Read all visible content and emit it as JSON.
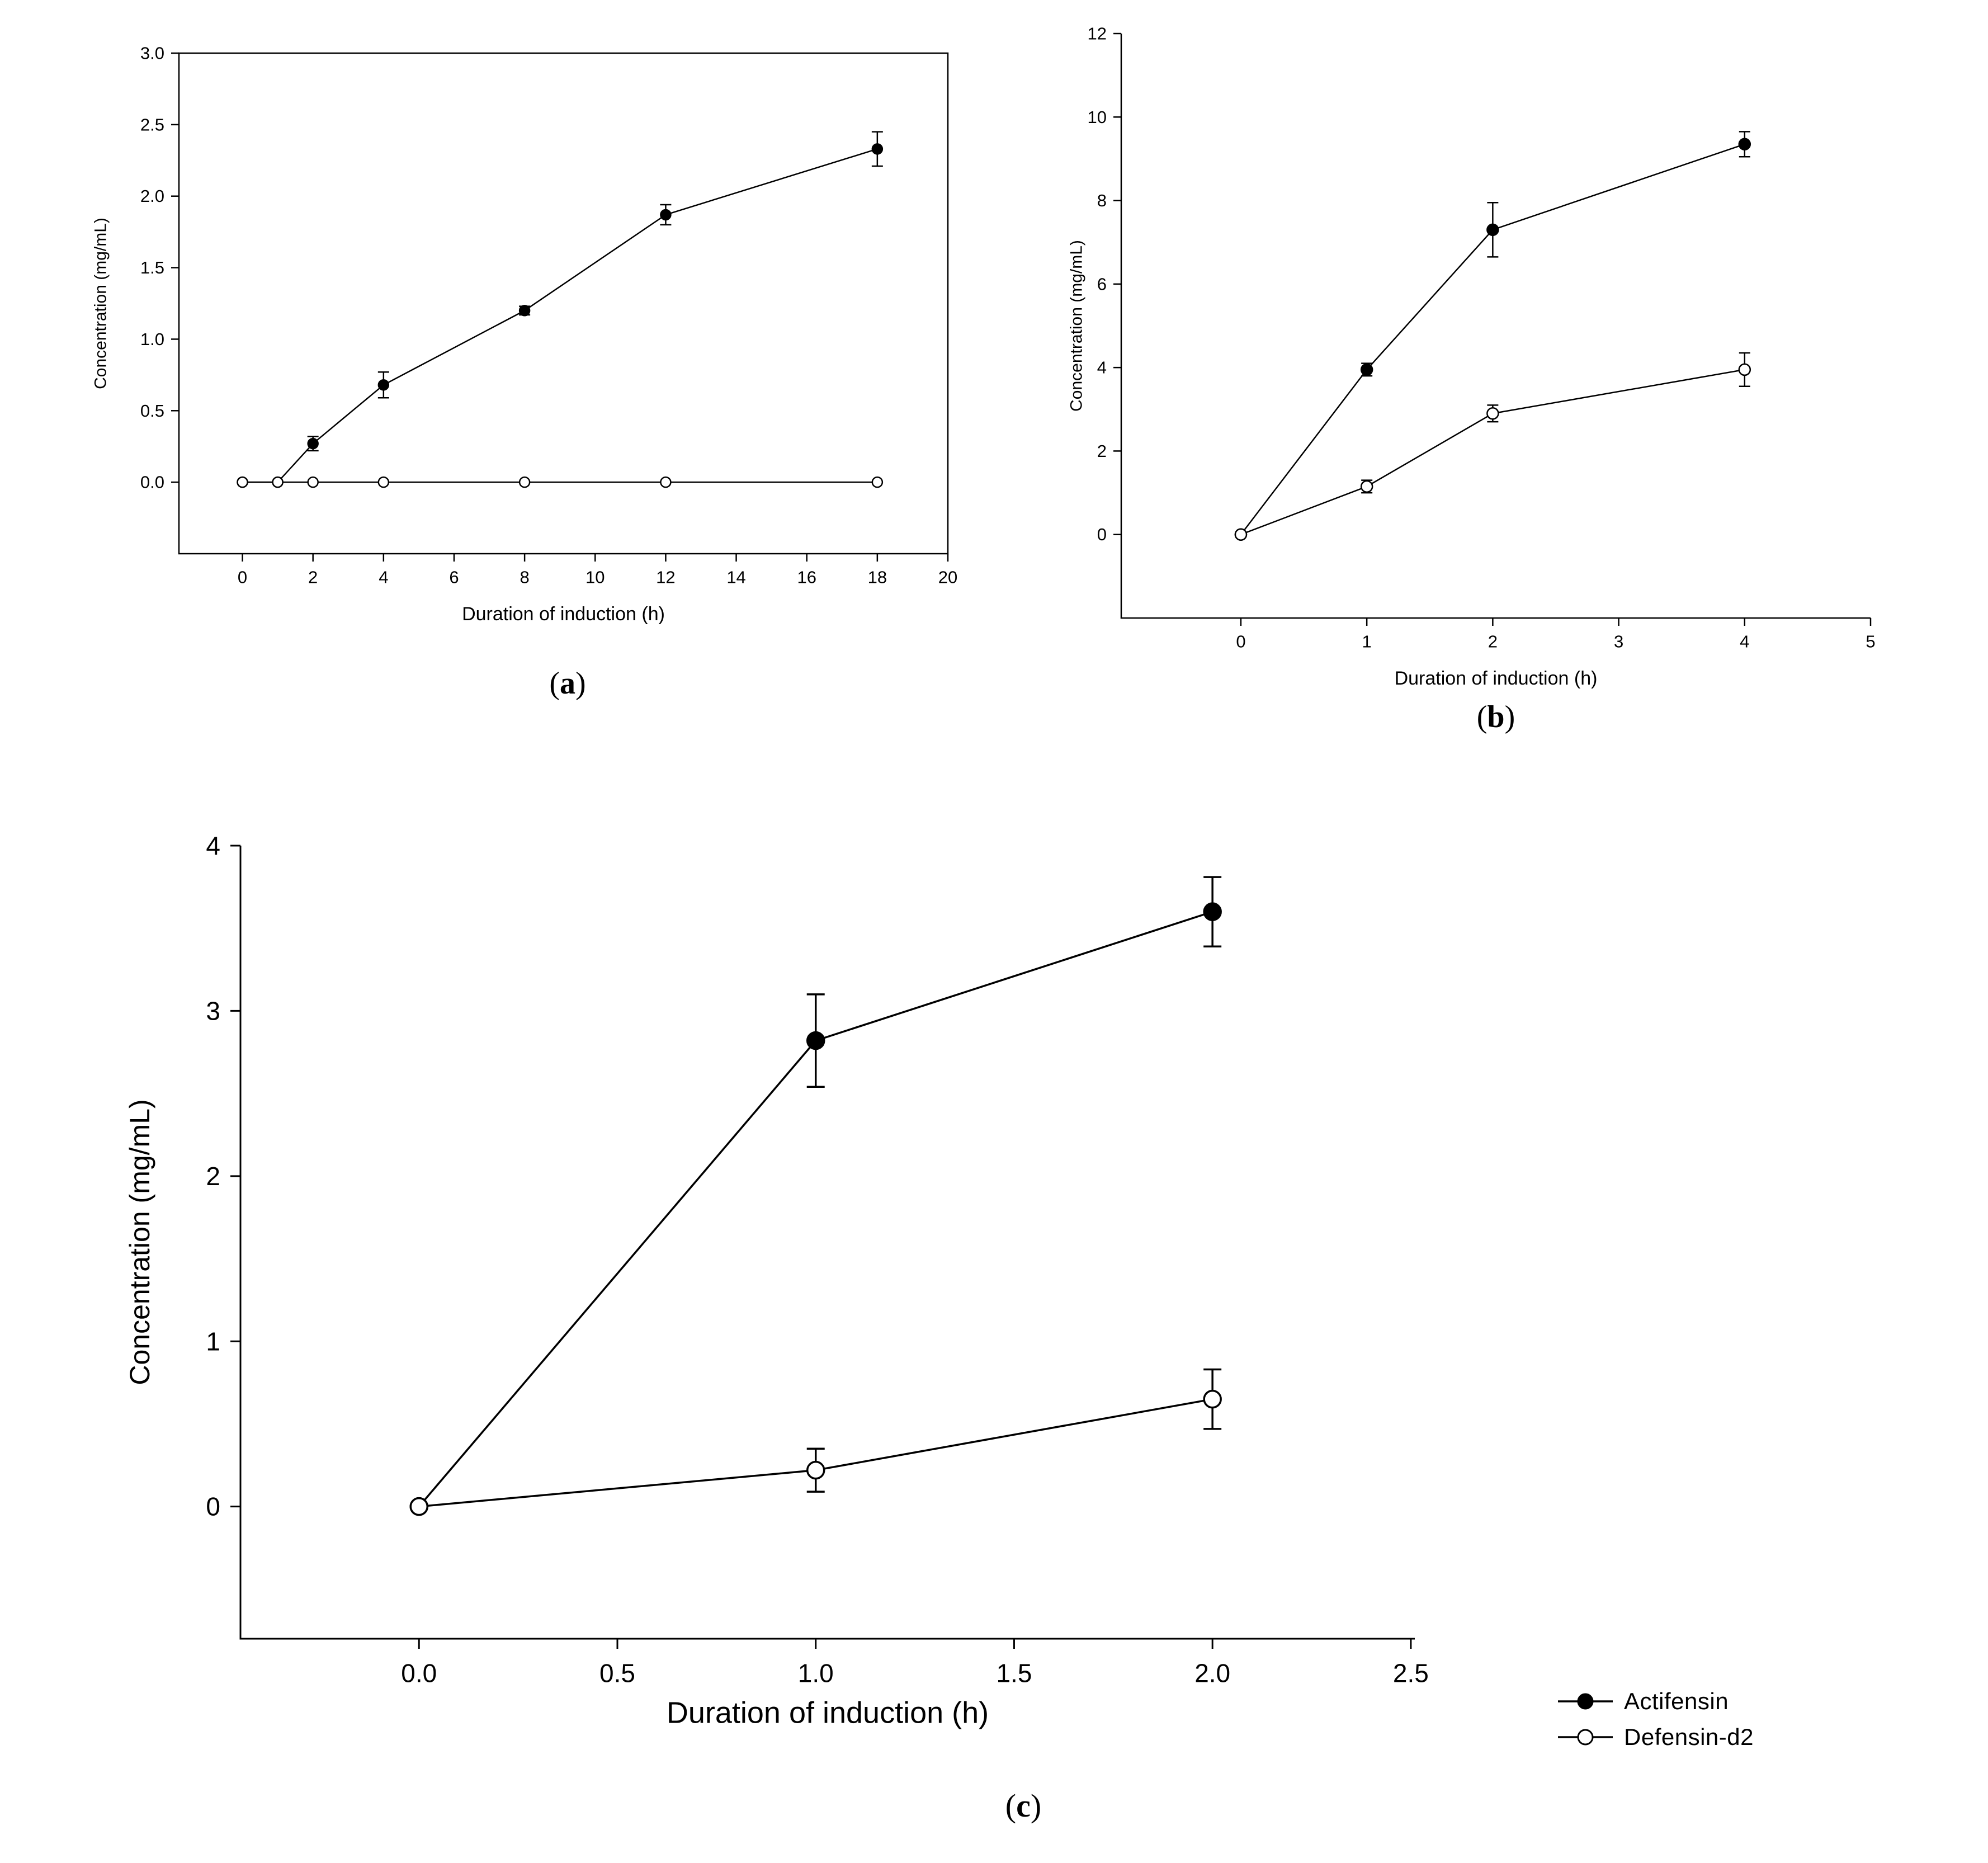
{
  "panels": [
    {
      "prefix": "(",
      "letter": "a",
      "suffix": ")"
    },
    {
      "prefix": "(",
      "letter": "b",
      "suffix": ")"
    },
    {
      "prefix": "(",
      "letter": "c",
      "suffix": ")"
    }
  ],
  "legend": {
    "position": "bottom-right",
    "entries": [
      {
        "label": "Actifensin",
        "marker": "filled-circle"
      },
      {
        "label": "Defensin-d2",
        "marker": "open-circle"
      }
    ]
  },
  "chart_data": [
    {
      "id": "a",
      "type": "line",
      "title": "",
      "xlabel": "Duration of induction (h)",
      "ylabel": "Concentration (mg/mL)",
      "frame": "box",
      "grid": false,
      "xlim": [
        -1.8,
        20
      ],
      "ylim": [
        -0.5,
        3.0
      ],
      "xticks": [
        0,
        2,
        4,
        6,
        8,
        10,
        12,
        14,
        16,
        18,
        20
      ],
      "xtick_labels": [
        "0",
        "2",
        "4",
        "6",
        "8",
        "10",
        "12",
        "14",
        "16",
        "18",
        "20"
      ],
      "yticks": [
        0,
        0.5,
        1.0,
        1.5,
        2.0,
        2.5,
        3.0
      ],
      "ytick_labels": [
        "0.0",
        "0.5",
        "1.0",
        "1.5",
        "2.0",
        "2.5",
        "3.0"
      ],
      "series": [
        {
          "name": "Actifensin",
          "marker": "filled-circle",
          "x": [
            0,
            1,
            2,
            4,
            8,
            12,
            18
          ],
          "y": [
            0,
            0,
            0.27,
            0.68,
            1.2,
            1.87,
            2.33
          ],
          "yerr": [
            0,
            0,
            0.05,
            0.09,
            0.03,
            0.07,
            0.12
          ]
        },
        {
          "name": "Defensin-d2",
          "marker": "open-circle",
          "x": [
            0,
            1,
            2,
            4,
            8,
            12,
            18
          ],
          "y": [
            0,
            0,
            0,
            0,
            0,
            0,
            0
          ],
          "yerr": [
            0,
            0,
            0,
            0,
            0,
            0,
            0
          ]
        }
      ]
    },
    {
      "id": "b",
      "type": "line",
      "title": "",
      "xlabel": "Duration of induction (h)",
      "ylabel": "Concentration (mg/mL)",
      "frame": "L",
      "grid": false,
      "xlim": [
        -0.95,
        5
      ],
      "ylim": [
        -2,
        12
      ],
      "xticks": [
        0,
        1,
        2,
        3,
        4,
        5
      ],
      "xtick_labels": [
        "0",
        "1",
        "2",
        "3",
        "4",
        "5"
      ],
      "yticks": [
        0,
        2,
        4,
        6,
        8,
        10,
        12
      ],
      "ytick_labels": [
        "0",
        "2",
        "4",
        "6",
        "8",
        "10",
        "12"
      ],
      "series": [
        {
          "name": "Actifensin",
          "marker": "filled-circle",
          "x": [
            0,
            1,
            2,
            4
          ],
          "y": [
            0,
            3.95,
            7.3,
            9.35
          ],
          "yerr": [
            0,
            0.15,
            0.65,
            0.3
          ]
        },
        {
          "name": "Defensin-d2",
          "marker": "open-circle",
          "x": [
            0,
            1,
            2,
            4
          ],
          "y": [
            0,
            1.15,
            2.9,
            3.95
          ],
          "yerr": [
            0,
            0.15,
            0.2,
            0.4
          ]
        }
      ]
    },
    {
      "id": "c",
      "type": "line",
      "title": "",
      "xlabel": "Duration of induction (h)",
      "ylabel": "Concentration (mg/mL)",
      "frame": "L",
      "grid": false,
      "xlim": [
        -0.45,
        2.51
      ],
      "ylim": [
        -0.8,
        4
      ],
      "xticks": [
        0,
        0.5,
        1.0,
        1.5,
        2.0,
        2.5
      ],
      "xtick_labels": [
        "0.0",
        "0.5",
        "1.0",
        "1.5",
        "2.0",
        "2.5"
      ],
      "yticks": [
        0,
        1,
        2,
        3,
        4
      ],
      "ytick_labels": [
        "0",
        "1",
        "2",
        "3",
        "4"
      ],
      "series": [
        {
          "name": "Actifensin",
          "marker": "filled-circle",
          "x": [
            0,
            1,
            2
          ],
          "y": [
            0,
            2.82,
            3.6
          ],
          "yerr": [
            0,
            0.28,
            0.21
          ]
        },
        {
          "name": "Defensin-d2",
          "marker": "open-circle",
          "x": [
            0,
            1,
            2
          ],
          "y": [
            0,
            0.22,
            0.65
          ],
          "yerr": [
            0,
            0.13,
            0.18
          ]
        }
      ]
    }
  ]
}
